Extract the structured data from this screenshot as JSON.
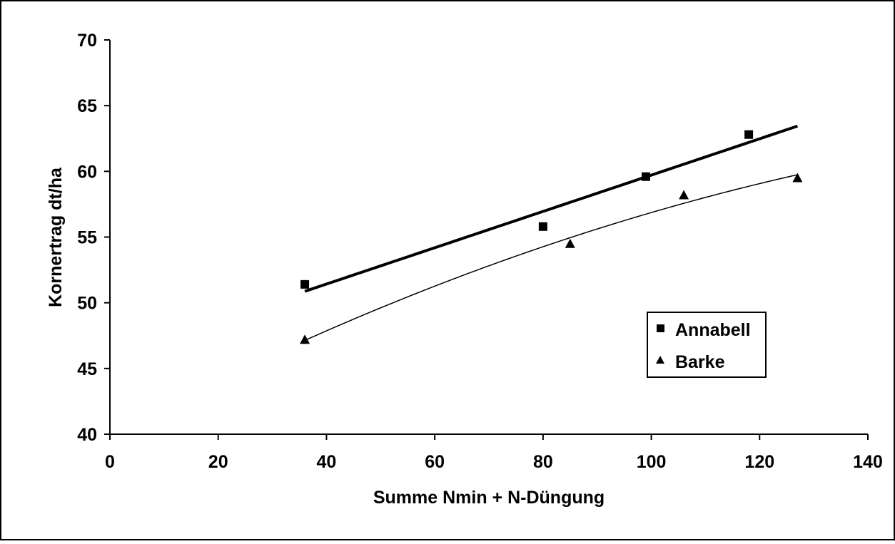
{
  "chart_data": {
    "type": "scatter",
    "title": "",
    "xlabel": "Summe Nmin + N-Düngung",
    "ylabel": "Kornertrag dt/ha",
    "xlim": [
      0,
      140
    ],
    "ylim": [
      40,
      70
    ],
    "x_ticks": [
      0,
      20,
      40,
      60,
      80,
      100,
      120,
      140
    ],
    "y_ticks": [
      40,
      45,
      50,
      55,
      60,
      65,
      70
    ],
    "grid": false,
    "legend_position": "inside-right",
    "series": [
      {
        "name": "Annabell",
        "marker": "square",
        "x": [
          36,
          80,
          99,
          118
        ],
        "y": [
          51.4,
          55.8,
          59.6,
          62.8
        ],
        "trendline": "linear",
        "line_width": "thick"
      },
      {
        "name": "Barke",
        "marker": "triangle",
        "x": [
          36,
          85,
          106,
          127
        ],
        "y": [
          47.2,
          54.5,
          58.2,
          59.5
        ],
        "trendline": "quadratic",
        "line_width": "thin"
      }
    ]
  },
  "colors": {
    "background": "#ffffff",
    "foreground": "#000000"
  }
}
